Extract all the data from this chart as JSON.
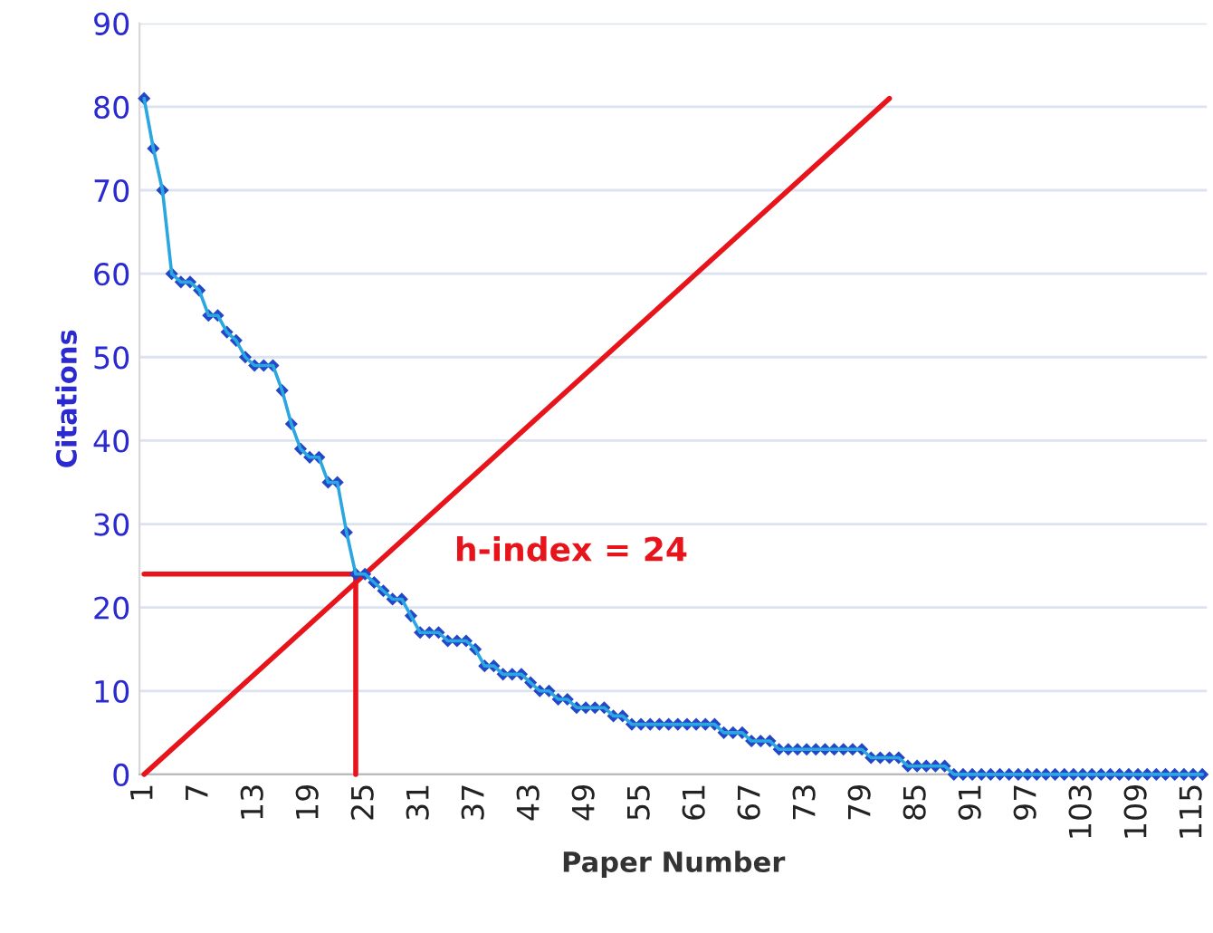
{
  "chart_data": {
    "type": "line",
    "xlabel": "Paper Number",
    "ylabel": "Citations",
    "x": [
      1,
      2,
      3,
      4,
      5,
      6,
      7,
      8,
      9,
      10,
      11,
      12,
      13,
      14,
      15,
      16,
      17,
      18,
      19,
      20,
      21,
      22,
      23,
      24,
      25,
      26,
      27,
      28,
      29,
      30,
      31,
      32,
      33,
      34,
      35,
      36,
      37,
      38,
      39,
      40,
      41,
      42,
      43,
      44,
      45,
      46,
      47,
      48,
      49,
      50,
      51,
      52,
      53,
      54,
      55,
      56,
      57,
      58,
      59,
      60,
      61,
      62,
      63,
      64,
      65,
      66,
      67,
      68,
      69,
      70,
      71,
      72,
      73,
      74,
      75,
      76,
      77,
      78,
      79,
      80,
      81,
      82,
      83,
      84,
      85,
      86,
      87,
      88,
      89,
      90,
      91,
      92,
      93,
      94,
      95,
      96,
      97,
      98,
      99,
      100,
      101,
      102,
      103,
      104,
      105,
      106,
      107,
      108,
      109,
      110,
      111,
      112,
      113,
      114,
      115,
      116
    ],
    "series": [
      {
        "color": "#2446c8",
        "marker": "diamond",
        "values": [
          81,
          75,
          70,
          60,
          59,
          59,
          58,
          55,
          55,
          53,
          52,
          50,
          49,
          49,
          49,
          46,
          42,
          39,
          38,
          38,
          35,
          35,
          29,
          24,
          24,
          23,
          22,
          21,
          21,
          19,
          17,
          17,
          17,
          16,
          16,
          16,
          15,
          13,
          13,
          12,
          12,
          12,
          11,
          10,
          10,
          9,
          9,
          8,
          8,
          8,
          8,
          7,
          7,
          6,
          6,
          6,
          6,
          6,
          6,
          6,
          6,
          6,
          6,
          5,
          5,
          5,
          4,
          4,
          4,
          3,
          3,
          3,
          3,
          3,
          3,
          3,
          3,
          3,
          3,
          2,
          2,
          2,
          2,
          1,
          1,
          1,
          1,
          1,
          0,
          0,
          0,
          0,
          0,
          0,
          0,
          0,
          0,
          0,
          0,
          0,
          0,
          0,
          0,
          0,
          0,
          0,
          0,
          0,
          0,
          0,
          0,
          0,
          0,
          0,
          0,
          0
        ]
      },
      {
        "type": "line",
        "color": "#e8141c",
        "marker": "none",
        "x": [
          1,
          82
        ],
        "values": [
          0,
          81
        ]
      },
      {
        "type": "line",
        "color": "#e8141c",
        "marker": "none",
        "x": [
          1,
          24
        ],
        "values": [
          24,
          24
        ]
      },
      {
        "type": "line",
        "color": "#e8141c",
        "marker": "none",
        "x": [
          24,
          24
        ],
        "values": [
          0,
          24
        ]
      }
    ],
    "annotations": [
      "h-index = 24"
    ],
    "xlim": [
      0.5,
      116.5
    ],
    "xticks": [
      1,
      7,
      13,
      19,
      25,
      31,
      37,
      43,
      49,
      55,
      61,
      67,
      73,
      79,
      85,
      91,
      97,
      103,
      109,
      115
    ],
    "ylim": [
      0,
      90
    ],
    "yticks": [
      0,
      10,
      20,
      30,
      40,
      50,
      60,
      70,
      80,
      90
    ],
    "grid": "y",
    "legend": false
  }
}
